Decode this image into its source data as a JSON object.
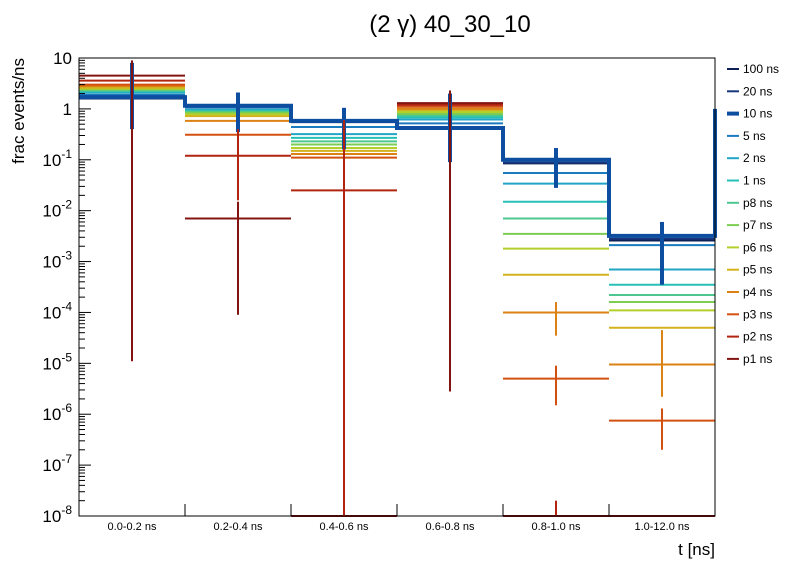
{
  "chart_data": {
    "type": "step",
    "title": "(2 γ) 40_30_10",
    "xlabel": "t [ns]",
    "ylabel": "frac events/ns",
    "yscale": "log",
    "ylim": [
      1e-08,
      10
    ],
    "y_ticks": [
      {
        "base": "10",
        "exp": "-8"
      },
      {
        "base": "10",
        "exp": "-7"
      },
      {
        "base": "10",
        "exp": "-6"
      },
      {
        "base": "10",
        "exp": "-5"
      },
      {
        "base": "10",
        "exp": "-4"
      },
      {
        "base": "10",
        "exp": "-3"
      },
      {
        "base": "10",
        "exp": "-2"
      },
      {
        "base": "10",
        "exp": "-1"
      },
      {
        "base": "1",
        "exp": ""
      },
      {
        "base": "10",
        "exp": ""
      }
    ],
    "categories": [
      "0.0-0.2 ns",
      "0.2-0.4 ns",
      "0.4-0.6 ns",
      "0.6-0.8 ns",
      "0.8-1.0 ns",
      "1.0-12.0 ns"
    ],
    "highlight_series": "10 ns",
    "series": [
      {
        "name": "100 ns",
        "color": "#0d1f54",
        "values": [
          1.6,
          1.1,
          0.55,
          0.42,
          0.085,
          0.0026
        ]
      },
      {
        "name": "20 ns",
        "color": "#16377c",
        "values": [
          1.65,
          1.12,
          0.56,
          0.42,
          0.088,
          0.0028
        ]
      },
      {
        "name": "10 ns",
        "color": "#0d4ea0",
        "values": [
          1.7,
          1.15,
          0.58,
          0.42,
          0.1,
          0.0032
        ],
        "errors": [
          [
            0.4,
            8
          ],
          [
            0.35,
            2.1
          ],
          [
            0.16,
            1.05
          ],
          [
            0.09,
            2.0
          ],
          [
            0.028,
            0.17
          ],
          [
            0.00035,
            0.006
          ]
        ]
      },
      {
        "name": "5 ns",
        "color": "#1a7bbf",
        "values": [
          1.9,
          1.05,
          0.44,
          0.52,
          0.055,
          0.0021
        ]
      },
      {
        "name": "2 ns",
        "color": "#21a5c6",
        "values": [
          2.1,
          0.95,
          0.32,
          0.62,
          0.034,
          0.0007
        ]
      },
      {
        "name": "1 ns",
        "color": "#26c0b7",
        "values": [
          2.2,
          0.92,
          0.27,
          0.68,
          0.015,
          0.00035
        ]
      },
      {
        "name": "p8 ns",
        "color": "#4dc790",
        "values": [
          2.3,
          0.88,
          0.23,
          0.74,
          0.007,
          0.00022
        ]
      },
      {
        "name": "p7 ns",
        "color": "#7ccd52",
        "values": [
          2.4,
          0.84,
          0.2,
          0.8,
          0.0035,
          0.00016
        ]
      },
      {
        "name": "p6 ns",
        "color": "#b3cf2b",
        "values": [
          2.5,
          0.78,
          0.17,
          0.87,
          0.0018,
          0.00011
        ]
      },
      {
        "name": "p5 ns",
        "color": "#d3b21d",
        "values": [
          2.6,
          0.72,
          0.15,
          0.95,
          0.00055,
          5e-05
        ]
      },
      {
        "name": "p4 ns",
        "color": "#dc8214",
        "values": [
          2.8,
          0.58,
          0.13,
          1.0,
          0.0001,
          9.5e-06
        ],
        "errors": [
          null,
          null,
          null,
          null,
          [
            3.5e-05,
            0.00016
          ],
          [
            2.2e-06,
            4.5e-05
          ]
        ]
      },
      {
        "name": "p3 ns",
        "color": "#d45011",
        "values": [
          3.0,
          0.31,
          0.11,
          1.1,
          5e-06,
          7.5e-07
        ],
        "errors": [
          null,
          null,
          null,
          null,
          [
            1.5e-06,
            9e-06
          ],
          [
            2e-07,
            1.3e-06
          ]
        ]
      },
      {
        "name": "p2 ns",
        "color": "#b1240f",
        "values": [
          3.6,
          0.12,
          0.025,
          1.2,
          1e-08,
          1e-08
        ],
        "errors": [
          null,
          [
            0.016,
            0.4
          ],
          [
            3.5e-09,
            0.6
          ],
          null,
          [
            1e-08,
            2e-08
          ],
          null
        ]
      },
      {
        "name": "p1 ns",
        "color": "#841411",
        "values": [
          4.5,
          0.007,
          1e-10,
          1.3,
          1e-08,
          1e-08
        ],
        "errors": [
          [
            1.1e-05,
            9
          ],
          [
            9e-05,
            0.015
          ],
          null,
          [
            2.8e-06,
            2.3
          ],
          null,
          null
        ]
      }
    ]
  }
}
